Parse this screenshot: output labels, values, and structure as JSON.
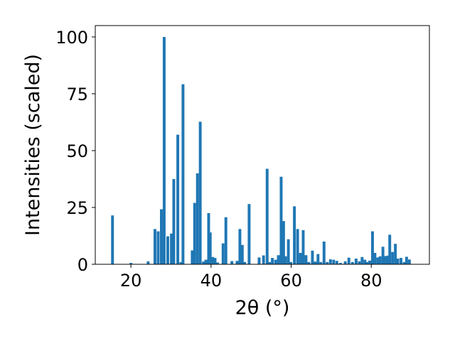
{
  "chart_data": {
    "type": "bar",
    "xlabel": "2θ (°)",
    "ylabel": "Intensities (scaled)",
    "xlim": [
      11.1,
      94.5
    ],
    "ylim": [
      0,
      105
    ],
    "xticks": [
      20,
      40,
      60,
      80
    ],
    "yticks": [
      0,
      25,
      50,
      75,
      100
    ],
    "grid": false,
    "bar_color": "#1f77b4",
    "bar_width": 0.7,
    "x": [
      15.4,
      20.0,
      24.3,
      26.0,
      26.8,
      27.6,
      28.3,
      29.2,
      30.1,
      30.7,
      31.7,
      32.5,
      33.0,
      35.3,
      35.9,
      36.6,
      37.3,
      38.1,
      38.7,
      39.4,
      39.8,
      40.4,
      41.0,
      41.6,
      43.0,
      43.7,
      45.2,
      46.5,
      47.2,
      47.8,
      48.4,
      49.5,
      52.0,
      53.1,
      54.0,
      54.6,
      55.3,
      56.1,
      56.8,
      57.5,
      58.1,
      58.6,
      59.3,
      59.9,
      60.8,
      61.6,
      62.3,
      63.0,
      63.7,
      64.4,
      65.3,
      66.0,
      66.7,
      67.4,
      68.2,
      69.0,
      69.8,
      70.6,
      71.4,
      72.3,
      73.5,
      74.4,
      75.3,
      76.2,
      77.0,
      77.7,
      78.4,
      79.0,
      79.6,
      80.3,
      80.9,
      81.6,
      82.2,
      82.9,
      83.5,
      84.1,
      84.6,
      85.3,
      86.0,
      86.6,
      87.4,
      88.2,
      88.8,
      89.5
    ],
    "values": [
      21.5,
      0.6,
      1.3,
      15.5,
      14.5,
      24.2,
      100.0,
      12.3,
      13.5,
      37.5,
      57.0,
      1.0,
      79.2,
      6.1,
      27.0,
      40.0,
      62.7,
      1.2,
      2.0,
      22.5,
      14.0,
      3.2,
      2.8,
      0.8,
      9.2,
      20.7,
      1.4,
      1.5,
      15.5,
      8.5,
      1.0,
      26.5,
      3.0,
      3.9,
      42.0,
      1.0,
      2.8,
      2.0,
      4.0,
      38.5,
      19.0,
      3.5,
      11.0,
      1.0,
      25.5,
      15.5,
      5.0,
      15.0,
      4.0,
      1.0,
      6.0,
      1.2,
      4.5,
      1.0,
      10.0,
      1.0,
      2.2,
      2.0,
      1.5,
      0.6,
      1.3,
      2.9,
      1.0,
      2.5,
      1.3,
      3.2,
      2.0,
      1.0,
      1.6,
      14.5,
      5.0,
      3.0,
      3.5,
      7.7,
      3.6,
      3.8,
      13.0,
      5.4,
      9.0,
      2.5,
      2.8,
      1.0,
      3.3,
      2.1
    ]
  }
}
